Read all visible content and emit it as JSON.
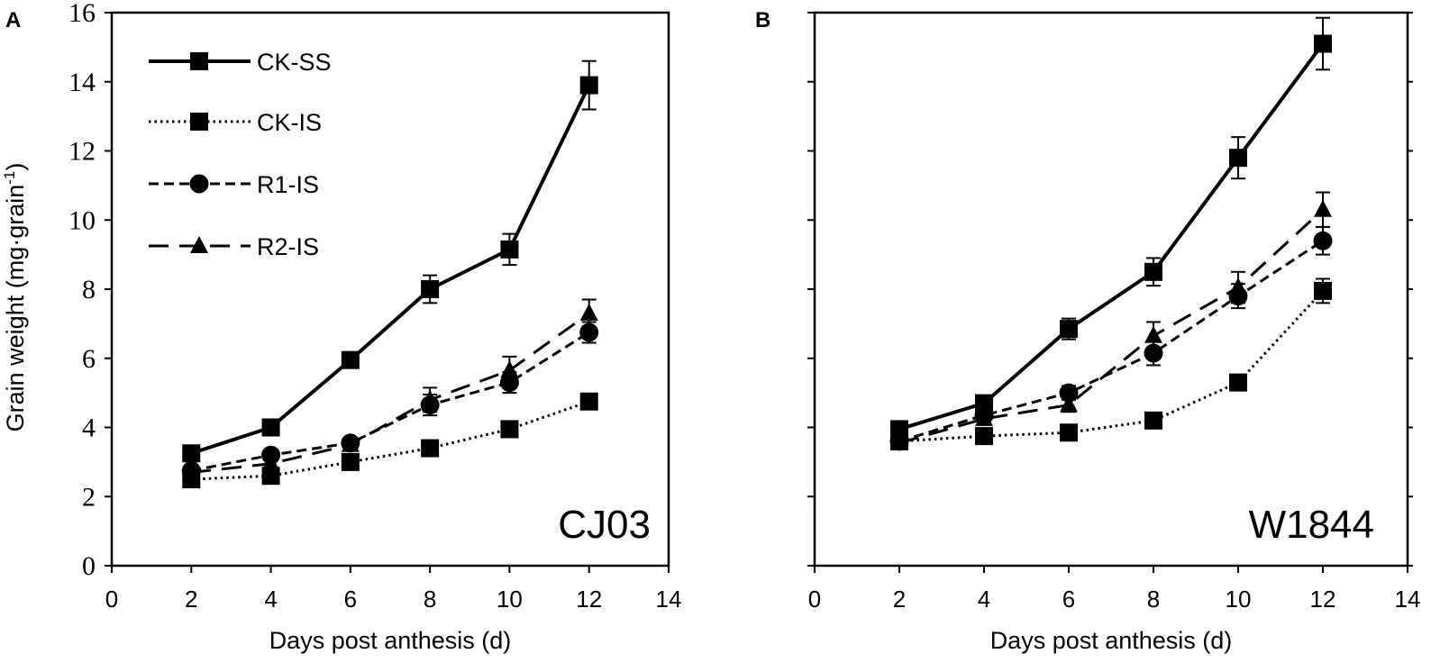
{
  "colors": {
    "ink": "#000000",
    "background": "#ffffff"
  },
  "y_title_text": "Grain weight (mg·grain",
  "y_title_sup": "-1",
  "y_title_close": ")",
  "legend": [
    {
      "label": "CK-SS",
      "style": "solid",
      "marker": "square"
    },
    {
      "label": "CK-IS",
      "style": "dotted",
      "marker": "square"
    },
    {
      "label": "R1-IS",
      "style": "dashed",
      "marker": "circle"
    },
    {
      "label": "R2-IS",
      "style": "longdash",
      "marker": "triangle"
    }
  ],
  "chart_data": [
    {
      "type": "line",
      "panel": "A",
      "label": "CJ03",
      "xlabel": "Days post anthesis (d)",
      "ylabel": "Grain weight (mg·grain-1)",
      "xlim": [
        0,
        14
      ],
      "ylim": [
        0,
        16
      ],
      "xticks": [
        0,
        2,
        4,
        6,
        8,
        10,
        12,
        14
      ],
      "yticks": [
        0,
        2,
        4,
        6,
        8,
        10,
        12,
        14,
        16
      ],
      "x": [
        2,
        4,
        6,
        8,
        10,
        12
      ],
      "series": [
        {
          "name": "CK-SS",
          "style": "solid",
          "marker": "square",
          "values": [
            3.25,
            4.0,
            5.95,
            8.0,
            9.15,
            13.9
          ],
          "errors": [
            0.1,
            0.1,
            0.2,
            0.4,
            0.45,
            0.7
          ]
        },
        {
          "name": "CK-IS",
          "style": "dotted",
          "marker": "square",
          "values": [
            2.5,
            2.6,
            3.0,
            3.4,
            3.95,
            4.75
          ],
          "errors": [
            0.1,
            0.1,
            0.1,
            0.1,
            0.15,
            0.2
          ]
        },
        {
          "name": "R1-IS",
          "style": "dashed",
          "marker": "circle",
          "values": [
            2.75,
            3.2,
            3.55,
            4.65,
            5.3,
            6.75
          ],
          "errors": [
            0.1,
            0.15,
            0.15,
            0.3,
            0.3,
            0.3
          ]
        },
        {
          "name": "R2-IS",
          "style": "longdash",
          "marker": "triangle",
          "values": [
            2.7,
            2.95,
            3.5,
            4.8,
            5.65,
            7.3
          ],
          "errors": [
            0.1,
            0.1,
            0.15,
            0.35,
            0.4,
            0.4
          ]
        }
      ]
    },
    {
      "type": "line",
      "panel": "B",
      "label": "W1844",
      "xlabel": "Days post anthesis (d)",
      "ylabel": "",
      "xlim": [
        0,
        14
      ],
      "ylim": [
        0,
        16
      ],
      "xticks": [
        0,
        2,
        4,
        6,
        8,
        10,
        12,
        14
      ],
      "yticks": [
        0,
        2,
        4,
        6,
        8,
        10,
        12,
        14,
        16
      ],
      "x": [
        2,
        4,
        6,
        8,
        10,
        12
      ],
      "series": [
        {
          "name": "CK-SS",
          "style": "solid",
          "marker": "square",
          "values": [
            3.95,
            4.7,
            6.85,
            8.5,
            11.8,
            15.1
          ],
          "errors": [
            0.15,
            0.15,
            0.3,
            0.4,
            0.6,
            0.75
          ]
        },
        {
          "name": "CK-IS",
          "style": "dotted",
          "marker": "square",
          "values": [
            3.6,
            3.75,
            3.85,
            4.2,
            5.3,
            7.95
          ],
          "errors": [
            0.1,
            0.1,
            0.1,
            0.15,
            0.15,
            0.35
          ]
        },
        {
          "name": "R1-IS",
          "style": "dashed",
          "marker": "circle",
          "values": [
            3.6,
            4.35,
            5.0,
            6.15,
            7.8,
            9.4
          ],
          "errors": [
            0.15,
            0.15,
            0.2,
            0.35,
            0.35,
            0.4
          ]
        },
        {
          "name": "R2-IS",
          "style": "longdash",
          "marker": "triangle",
          "values": [
            3.55,
            4.25,
            4.65,
            6.65,
            8.05,
            10.3
          ],
          "errors": [
            0.15,
            0.15,
            0.2,
            0.4,
            0.45,
            0.5
          ]
        }
      ]
    }
  ]
}
